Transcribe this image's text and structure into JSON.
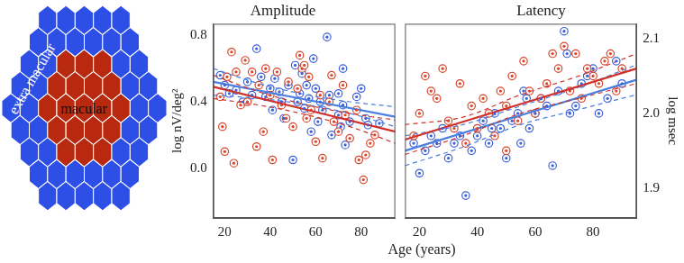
{
  "diagram": {
    "regions": [
      {
        "label": "macular",
        "color": "#b8290f"
      },
      {
        "label": "extra macular",
        "color": "#2d4fe6"
      }
    ]
  },
  "xlabel": "Age (years)",
  "chart_data": [
    {
      "type": "scatter",
      "title": "Amplitude",
      "ylabel": "log nV/deg²",
      "xlim": [
        15,
        95
      ],
      "xticks": [
        20,
        40,
        60,
        80
      ],
      "ylim": [
        -0.3,
        0.87
      ],
      "yticks": [
        {
          "value": 0,
          "label": "0.0"
        },
        0.4,
        0.8
      ],
      "grid": false,
      "series": [
        {
          "name": "macular",
          "color": "#d9442a",
          "marker": "circle",
          "x": [
            18,
            19,
            20,
            21,
            23,
            24,
            25,
            27,
            29,
            30,
            32,
            34,
            35,
            37,
            38,
            40,
            41,
            43,
            45,
            47,
            48,
            50,
            52,
            53,
            54,
            55,
            56,
            57,
            58,
            60,
            62,
            63,
            66,
            68,
            70,
            72,
            73,
            75,
            78,
            79,
            81,
            82,
            84,
            86,
            67
          ],
          "values": [
            0.43,
            0.25,
            0.1,
            0.55,
            0.7,
            0.03,
            0.58,
            0.38,
            0.65,
            0.4,
            0.58,
            0.13,
            0.5,
            0.22,
            0.6,
            0.44,
            0.05,
            0.58,
            0.38,
            0.3,
            0.52,
            0.25,
            0.48,
            0.68,
            0.6,
            0.62,
            0.3,
            0.55,
            0.35,
            0.16,
            0.44,
            0.06,
            0.4,
            0.28,
            0.22,
            0.5,
            0.32,
            0.18,
            0.35,
            0.05,
            -0.07,
            0.08,
            0.15,
            0.2,
            0.56
          ]
        },
        {
          "name": "extra macular",
          "color": "#3a5fd9",
          "marker": "circle",
          "x": [
            18,
            20,
            22,
            25,
            28,
            30,
            32,
            34,
            36,
            38,
            40,
            41,
            42,
            44,
            45,
            46,
            48,
            50,
            51,
            52,
            53,
            54,
            55,
            56,
            57,
            58,
            59,
            60,
            61,
            62,
            63,
            65,
            66,
            67,
            70,
            70,
            71,
            72,
            73,
            75,
            78,
            80,
            82,
            83,
            88,
            72
          ],
          "values": [
            0.56,
            0.5,
            0.45,
            0.47,
            0.4,
            0.52,
            0.44,
            0.72,
            0.55,
            0.43,
            0.48,
            0.35,
            0.54,
            0.46,
            0.4,
            0.3,
            0.5,
            0.05,
            0.62,
            0.4,
            0.45,
            0.57,
            0.36,
            0.5,
            0.42,
            0.22,
            0.66,
            0.48,
            0.28,
            0.4,
            0.35,
            0.79,
            0.44,
            0.2,
            0.45,
            0.32,
            0.25,
            0.38,
            0.14,
            0.28,
            0.43,
            0.48,
            0.3,
            0.26,
            0.27,
            0.6
          ]
        },
        {
          "type": "line",
          "color": "#d0302a",
          "line_style": "solid",
          "x": [
            15,
            95
          ],
          "values": [
            0.49,
            0.22
          ]
        },
        {
          "type": "line",
          "color": "#d0302a",
          "line_style": "dashed",
          "x": [
            15,
            35,
            55,
            75,
            95
          ],
          "values": [
            0.56,
            0.46,
            0.385,
            0.33,
            0.29
          ]
        },
        {
          "type": "line",
          "color": "#d0302a",
          "line_style": "dashed",
          "x": [
            15,
            35,
            55,
            75,
            95
          ],
          "values": [
            0.42,
            0.38,
            0.325,
            0.25,
            0.15
          ]
        },
        {
          "type": "line",
          "color": "#4a7fe0",
          "line_style": "solid",
          "x": [
            15,
            95
          ],
          "values": [
            0.52,
            0.31
          ]
        },
        {
          "type": "line",
          "color": "#4a7fe0",
          "line_style": "dashed",
          "x": [
            15,
            35,
            55,
            75,
            95
          ],
          "values": [
            0.6,
            0.51,
            0.445,
            0.4,
            0.37
          ]
        },
        {
          "type": "line",
          "color": "#4a7fe0",
          "line_style": "dashed",
          "x": [
            15,
            35,
            55,
            75,
            95
          ],
          "values": [
            0.44,
            0.42,
            0.385,
            0.33,
            0.25
          ]
        }
      ]
    },
    {
      "type": "scatter",
      "title": "Latency",
      "ylabel": "log msec",
      "xlim": [
        15,
        95
      ],
      "xticks": [
        20,
        40,
        60,
        80
      ],
      "ylim": [
        1.86,
        2.12
      ],
      "yticks": [
        1.9,
        {
          "value": 2,
          "label": "2.0"
        },
        2.1
      ],
      "grid": false,
      "series": [
        {
          "name": "macular",
          "color": "#d9442a",
          "marker": "circle",
          "x": [
            18,
            20,
            22,
            24,
            26,
            28,
            30,
            32,
            34,
            36,
            38,
            40,
            42,
            44,
            46,
            48,
            50,
            52,
            54,
            56,
            58,
            60,
            62,
            64,
            66,
            68,
            70,
            72,
            74,
            76,
            78,
            80,
            82,
            84,
            86,
            88,
            90,
            50
          ],
          "values": [
            1.97,
            2.0,
            2.05,
            2.03,
            2.02,
            2.06,
            1.99,
            1.98,
            2.04,
            1.96,
            2.01,
            1.98,
            2.02,
            2.0,
            1.97,
            2.03,
            2.01,
            2.05,
            1.99,
            2.07,
            2.03,
            2.0,
            2.02,
            2.04,
            2.08,
            2.06,
            2.09,
            2.03,
            2.08,
            2.02,
            2.06,
            2.05,
            2.04,
            2.07,
            2.08,
            2.03,
            2.06,
            1.95
          ]
        },
        {
          "name": "extra macular",
          "color": "#3a5fd9",
          "marker": "circle",
          "x": [
            18,
            20,
            22,
            24,
            26,
            28,
            30,
            32,
            34,
            36,
            38,
            40,
            42,
            44,
            46,
            48,
            50,
            52,
            54,
            55,
            56,
            58,
            60,
            62,
            64,
            66,
            68,
            70,
            71,
            72,
            74,
            76,
            78,
            80,
            82,
            85,
            88,
            90,
            57,
            45
          ],
          "values": [
            1.96,
            1.92,
            1.95,
            1.97,
            1.96,
            1.98,
            1.94,
            1.96,
            1.97,
            1.89,
            1.95,
            1.97,
            1.99,
            1.96,
            2.0,
            1.98,
            1.94,
            1.99,
            2.0,
            1.96,
            2.03,
            1.98,
            2.0,
            2.02,
            2.01,
            1.93,
            2.03,
            2.11,
            2.08,
            2.0,
            2.01,
            2.04,
            2.05,
            2.06,
            2.0,
            2.02,
            2.07,
            2.04,
            2.02,
            1.98
          ]
        },
        {
          "type": "line",
          "color": "#d0302a",
          "line_style": "solid",
          "x": [
            15,
            95
          ],
          "values": [
            1.965,
            2.06
          ]
        },
        {
          "type": "line",
          "color": "#d0302a",
          "line_style": "dashed",
          "x": [
            15,
            35,
            55,
            75,
            95
          ],
          "values": [
            1.985,
            1.995,
            2.025,
            2.05,
            2.08
          ]
        },
        {
          "type": "line",
          "color": "#d0302a",
          "line_style": "dashed",
          "x": [
            15,
            35,
            55,
            75,
            95
          ],
          "values": [
            1.945,
            1.97,
            2.0,
            2.02,
            2.04
          ]
        },
        {
          "type": "line",
          "color": "#4a7fe0",
          "line_style": "solid",
          "x": [
            15,
            95
          ],
          "values": [
            1.95,
            2.045
          ]
        },
        {
          "type": "line",
          "color": "#4a7fe0",
          "line_style": "dashed",
          "x": [
            15,
            35,
            55,
            75,
            95
          ],
          "values": [
            1.97,
            1.985,
            2.01,
            2.035,
            2.065
          ]
        },
        {
          "type": "line",
          "color": "#4a7fe0",
          "line_style": "dashed",
          "x": [
            15,
            35,
            55,
            75,
            95
          ],
          "values": [
            1.93,
            1.955,
            1.985,
            2.005,
            2.025
          ]
        }
      ]
    }
  ]
}
